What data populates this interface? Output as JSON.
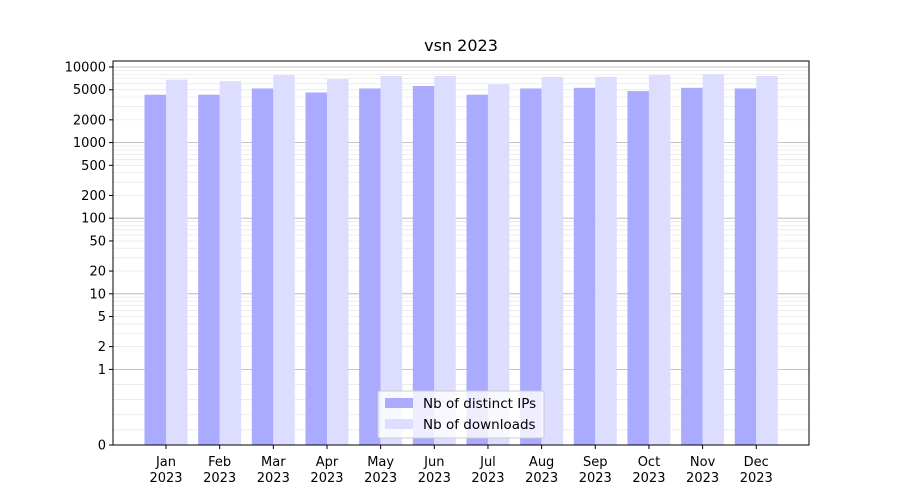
{
  "chart_data": {
    "type": "bar",
    "title": "vsn 2023",
    "xlabel": "",
    "ylabel": "",
    "yscale": "symlog",
    "ylim": [
      0,
      12000
    ],
    "yticks": [
      0,
      1,
      2,
      5,
      10,
      20,
      50,
      100,
      200,
      500,
      1000,
      2000,
      5000,
      10000
    ],
    "grid": true,
    "legend_position": "bottom-center",
    "categories": [
      [
        "Jan",
        "2023"
      ],
      [
        "Feb",
        "2023"
      ],
      [
        "Mar",
        "2023"
      ],
      [
        "Apr",
        "2023"
      ],
      [
        "May",
        "2023"
      ],
      [
        "Jun",
        "2023"
      ],
      [
        "Jul",
        "2023"
      ],
      [
        "Aug",
        "2023"
      ],
      [
        "Sep",
        "2023"
      ],
      [
        "Oct",
        "2023"
      ],
      [
        "Nov",
        "2023"
      ],
      [
        "Dec",
        "2023"
      ]
    ],
    "series": [
      {
        "name": "Nb of distinct IPs",
        "color": "#aaaaff",
        "values": [
          4300,
          4300,
          5200,
          4600,
          5200,
          5600,
          4300,
          5200,
          5300,
          4800,
          5300,
          5200
        ]
      },
      {
        "name": "Nb of downloads",
        "color": "#ddddff",
        "values": [
          6800,
          6500,
          7800,
          6900,
          7600,
          7600,
          5900,
          7400,
          7400,
          7800,
          8000,
          7600
        ]
      }
    ]
  }
}
